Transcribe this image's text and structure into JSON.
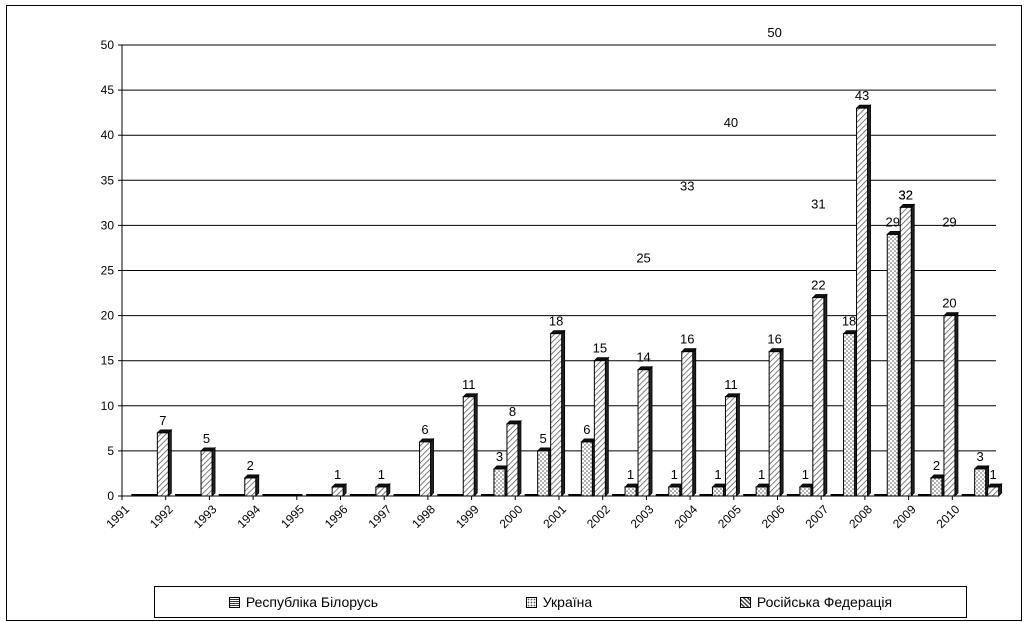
{
  "chart_data": {
    "type": "bar",
    "categories": [
      "1991",
      "1992",
      "1993",
      "1994",
      "1995",
      "1996",
      "1997",
      "1998",
      "1999",
      "2000",
      "2001",
      "2002",
      "2003",
      "2004",
      "2005",
      "2006",
      "2007",
      "2008",
      "2009",
      "2010"
    ],
    "series": [
      {
        "name": "Республіка Білорусь",
        "values": [
          0,
          0,
          0,
          0,
          0,
          0,
          0,
          0,
          0,
          0,
          0,
          0,
          0,
          0,
          0,
          0,
          0,
          0,
          0,
          0
        ],
        "labels": [
          null,
          null,
          null,
          null,
          null,
          null,
          null,
          null,
          null,
          null,
          null,
          null,
          null,
          null,
          null,
          null,
          null,
          null,
          null,
          null
        ]
      },
      {
        "name": "Україна",
        "values": [
          0,
          0,
          0,
          0,
          0,
          0,
          0,
          0,
          3,
          5,
          6,
          1,
          1,
          1,
          1,
          1,
          18,
          29,
          2,
          3
        ],
        "labels": [
          null,
          null,
          null,
          null,
          null,
          null,
          null,
          null,
          "3",
          "5",
          "6",
          "1",
          "1",
          "1",
          "1",
          "1",
          "18",
          "29",
          "2",
          "3"
        ]
      },
      {
        "name": "Російська Федерація",
        "values": [
          7,
          5,
          2,
          0,
          1,
          1,
          6,
          11,
          8,
          18,
          15,
          14,
          16,
          11,
          16,
          22,
          43,
          32,
          20,
          1
        ],
        "labels": [
          "7",
          "5",
          "2",
          null,
          "1",
          "1",
          "6",
          "11",
          "8",
          "18",
          "15",
          "14",
          "16",
          "11",
          "16",
          "22",
          "43",
          "32",
          "20",
          "1"
        ]
      }
    ],
    "extra_labels": [
      {
        "category": "2002",
        "text": "25"
      },
      {
        "category": "2003",
        "text": "33"
      },
      {
        "category": "2004",
        "text": "40"
      },
      {
        "category": "2005",
        "text": "50"
      },
      {
        "category": "2006",
        "text": "31"
      },
      {
        "category": "2008",
        "text": "32"
      },
      {
        "category": "2009",
        "text": "29"
      }
    ],
    "ylim": [
      0,
      50
    ],
    "yticks": [
      "0",
      "5",
      "10",
      "15",
      "20",
      "25",
      "30",
      "35",
      "40",
      "45",
      "50"
    ],
    "title": "",
    "xlabel": "",
    "ylabel": "",
    "grid": true,
    "legend_position": "bottom"
  },
  "colors": {
    "bar_fill": "#ffffff",
    "bar_stroke": "#000000",
    "grid": "#000000"
  }
}
